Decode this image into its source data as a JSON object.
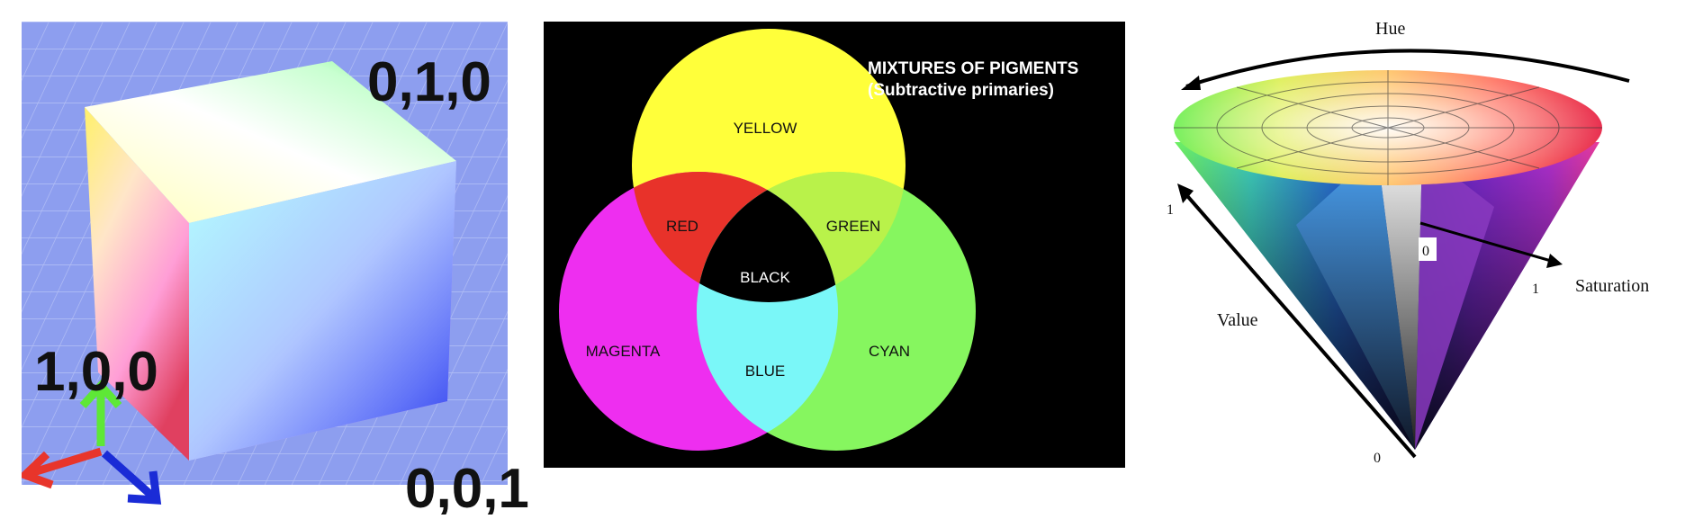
{
  "rgb_cube": {
    "corner_green": "0,1,0",
    "corner_red": "1,0,0",
    "corner_blue": "0,0,1",
    "axis_colors": {
      "red": "#e8352b",
      "green": "#5ee836",
      "blue": "#1a2bd6"
    },
    "floor_color": "#8d9eef"
  },
  "venn": {
    "title_line1": "MIXTURES OF PIGMENTS",
    "title_line2": "(Subtractive primaries)",
    "primaries": {
      "yellow": "YELLOW",
      "magenta": "MAGENTA",
      "cyan": "CYAN"
    },
    "overlaps": {
      "red": "RED",
      "green": "GREEN",
      "blue": "BLUE",
      "center": "BLACK"
    },
    "colors": {
      "yellow": "#ffff3a",
      "magenta": "#ee2ef0",
      "cyan": "#86f65f",
      "red": "#e8322a",
      "green": "#b9f24a",
      "blue": "#7af7f8",
      "center": "#000000"
    }
  },
  "hsv_cone": {
    "hue_label": "Hue",
    "value_label": "Value",
    "saturation_label": "Saturation",
    "value_top": "1",
    "value_bottom": "0",
    "saturation_start": "0",
    "saturation_end": "1"
  }
}
